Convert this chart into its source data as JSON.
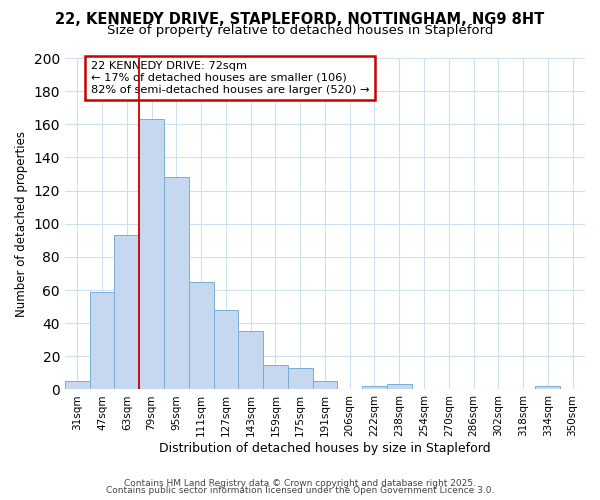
{
  "title1": "22, KENNEDY DRIVE, STAPLEFORD, NOTTINGHAM, NG9 8HT",
  "title2": "Size of property relative to detached houses in Stapleford",
  "xlabel": "Distribution of detached houses by size in Stapleford",
  "ylabel": "Number of detached properties",
  "categories": [
    "31sqm",
    "47sqm",
    "63sqm",
    "79sqm",
    "95sqm",
    "111sqm",
    "127sqm",
    "143sqm",
    "159sqm",
    "175sqm",
    "191sqm",
    "206sqm",
    "222sqm",
    "238sqm",
    "254sqm",
    "270sqm",
    "286sqm",
    "302sqm",
    "318sqm",
    "334sqm",
    "350sqm"
  ],
  "values": [
    5,
    59,
    93,
    163,
    128,
    65,
    48,
    35,
    15,
    13,
    5,
    0,
    2,
    3,
    0,
    0,
    0,
    0,
    0,
    2,
    0
  ],
  "bar_color": "#c5d8f0",
  "bar_edge_color": "#7aadd4",
  "red_line_index": 3,
  "annotation_title": "22 KENNEDY DRIVE: 72sqm",
  "annotation_line1": "← 17% of detached houses are smaller (106)",
  "annotation_line2": "82% of semi-detached houses are larger (520) →",
  "annotation_box_color": "#ffffff",
  "annotation_box_edge": "#cc0000",
  "footer1": "Contains HM Land Registry data © Crown copyright and database right 2025.",
  "footer2": "Contains public sector information licensed under the Open Government Licence 3.0.",
  "ylim": [
    0,
    200
  ],
  "bg_color": "#ffffff",
  "grid_color": "#d0dff0",
  "title_fontsize": 10.5,
  "subtitle_fontsize": 9.5
}
